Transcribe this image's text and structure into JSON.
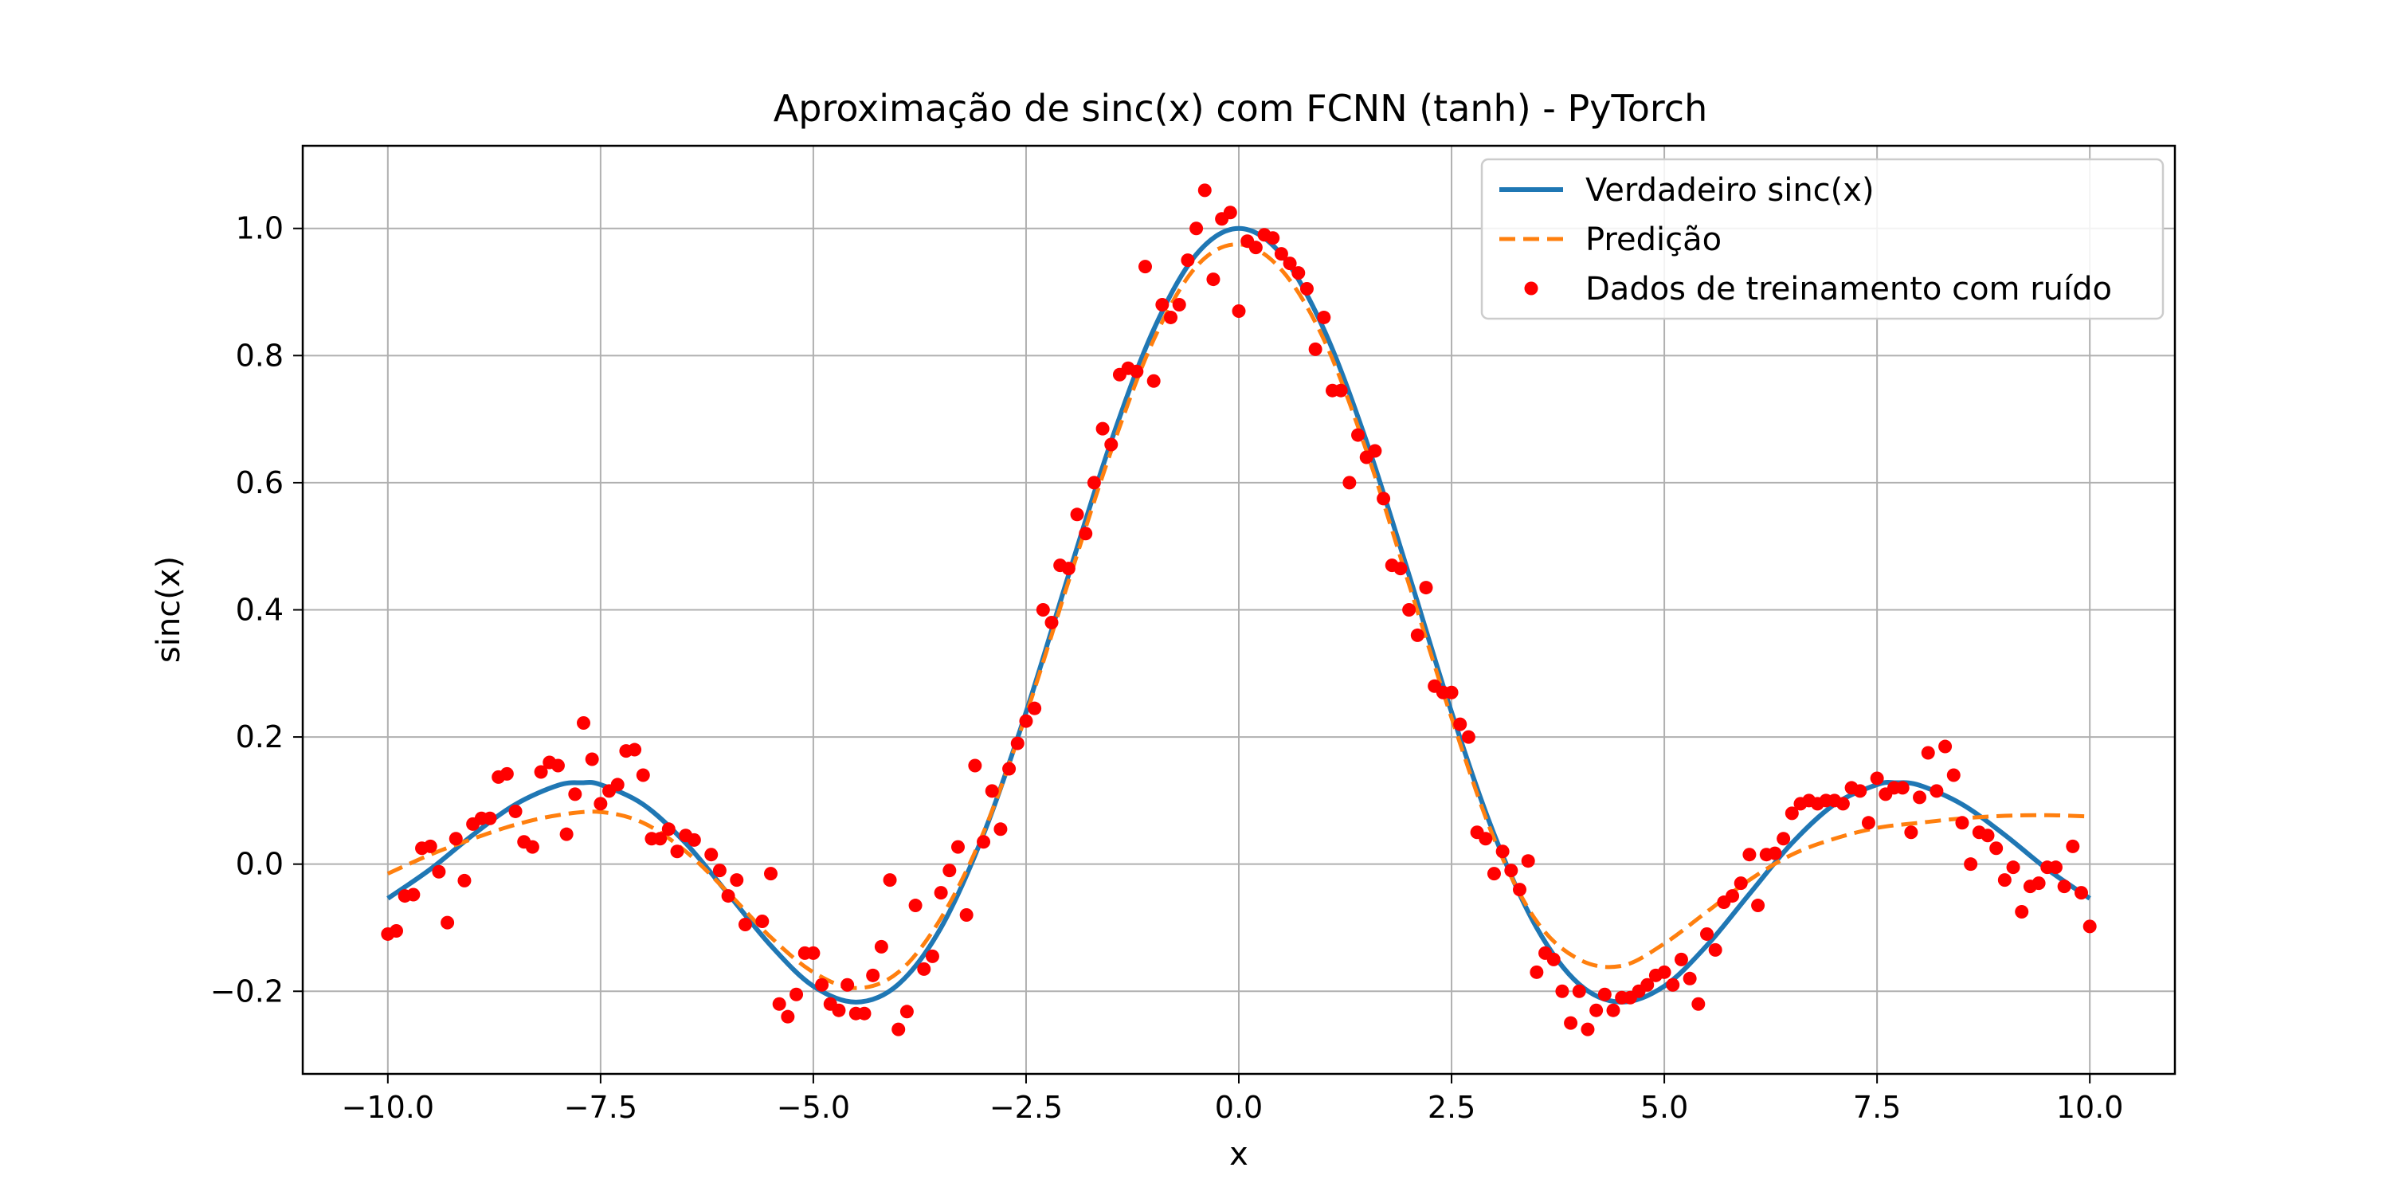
{
  "chart_data": {
    "type": "line",
    "title": "Aproximação de sinc(x) com FCNN (tanh) - PyTorch",
    "xlabel": "x",
    "ylabel": "sinc(x)",
    "xlim": [
      -11,
      11
    ],
    "ylim": [
      -0.33,
      1.13
    ],
    "x_ticks": [
      -10,
      -7.5,
      -5,
      -2.5,
      0,
      2.5,
      5,
      7.5,
      10
    ],
    "x_tick_labels": [
      "−10.0",
      "−7.5",
      "−5.0",
      "−2.5",
      "0.0",
      "2.5",
      "5.0",
      "7.5",
      "10.0"
    ],
    "y_ticks": [
      -0.2,
      0,
      0.2,
      0.4,
      0.6,
      0.8,
      1.0
    ],
    "y_tick_labels": [
      "−0.2",
      "0.0",
      "0.2",
      "0.4",
      "0.6",
      "0.8",
      "1.0"
    ],
    "grid": true,
    "legend_position": "top-right",
    "colors": {
      "true": "#1f77b4",
      "pred": "#ff7f0e",
      "points": "#ff0000"
    },
    "series": [
      {
        "name": "Verdadeiro sinc(x)",
        "style": "solid",
        "x": [
          -10,
          -9.5,
          -9,
          -8.5,
          -8,
          -7.725,
          -7.5,
          -7,
          -6.5,
          -6,
          -5.5,
          -5,
          -4.493,
          -4,
          -3.5,
          -3,
          -2.5,
          -2,
          -1.5,
          -1,
          -0.5,
          0,
          0.5,
          1,
          1.5,
          2,
          2.5,
          3,
          3.5,
          4,
          4.493,
          5,
          5.5,
          6,
          6.5,
          7,
          7.5,
          7.725,
          8,
          8.5,
          9,
          9.5,
          10
        ],
        "y": [
          -0.054,
          -0.008,
          0.046,
          0.094,
          0.124,
          0.128,
          0.125,
          0.094,
          0.033,
          -0.047,
          -0.128,
          -0.192,
          -0.217,
          -0.189,
          -0.1,
          0.047,
          0.239,
          0.455,
          0.665,
          0.841,
          0.959,
          1.0,
          0.959,
          0.841,
          0.665,
          0.455,
          0.239,
          0.047,
          -0.1,
          -0.189,
          -0.217,
          -0.192,
          -0.128,
          -0.047,
          0.033,
          0.094,
          0.125,
          0.128,
          0.124,
          0.094,
          0.046,
          -0.008,
          -0.054
        ]
      },
      {
        "name": "Predição",
        "style": "dashed",
        "x": [
          -10,
          -9.5,
          -9,
          -8.5,
          -8,
          -7.5,
          -7,
          -6.5,
          -6,
          -5.5,
          -5,
          -4.5,
          -4,
          -3.5,
          -3,
          -2.5,
          -2,
          -1.5,
          -1,
          -0.5,
          0,
          0.5,
          1,
          1.5,
          2,
          2.5,
          3,
          3.5,
          4,
          4.5,
          5,
          5.5,
          6,
          6.5,
          7,
          7.5,
          8,
          8.5,
          9,
          9.5,
          10
        ],
        "y": [
          -0.015,
          0.015,
          0.04,
          0.062,
          0.077,
          0.082,
          0.065,
          0.02,
          -0.045,
          -0.115,
          -0.17,
          -0.195,
          -0.17,
          -0.085,
          0.05,
          0.235,
          0.445,
          0.65,
          0.825,
          0.94,
          0.975,
          0.935,
          0.825,
          0.65,
          0.44,
          0.23,
          0.04,
          -0.09,
          -0.15,
          -0.16,
          -0.125,
          -0.075,
          -0.025,
          0.015,
          0.04,
          0.057,
          0.065,
          0.072,
          0.076,
          0.077,
          0.075
        ]
      },
      {
        "name": "Dados de treinamento com ruído",
        "style": "scatter",
        "points": [
          [
            -10.0,
            -0.11
          ],
          [
            -9.9,
            -0.105
          ],
          [
            -9.8,
            -0.05
          ],
          [
            -9.7,
            -0.048
          ],
          [
            -9.6,
            0.025
          ],
          [
            -9.5,
            0.028
          ],
          [
            -9.4,
            -0.012
          ],
          [
            -9.3,
            -0.092
          ],
          [
            -9.2,
            0.04
          ],
          [
            -9.1,
            -0.026
          ],
          [
            -9.0,
            0.063
          ],
          [
            -8.9,
            0.072
          ],
          [
            -8.8,
            0.072
          ],
          [
            -8.7,
            0.137
          ],
          [
            -8.6,
            0.142
          ],
          [
            -8.5,
            0.083
          ],
          [
            -8.4,
            0.035
          ],
          [
            -8.3,
            0.027
          ],
          [
            -8.2,
            0.145
          ],
          [
            -8.1,
            0.16
          ],
          [
            -8.0,
            0.155
          ],
          [
            -7.9,
            0.047
          ],
          [
            -7.8,
            0.11
          ],
          [
            -7.7,
            0.222
          ],
          [
            -7.6,
            0.165
          ],
          [
            -7.5,
            0.095
          ],
          [
            -7.4,
            0.115
          ],
          [
            -7.3,
            0.125
          ],
          [
            -7.2,
            0.178
          ],
          [
            -7.1,
            0.18
          ],
          [
            -7.0,
            0.14
          ],
          [
            -6.9,
            0.04
          ],
          [
            -6.8,
            0.04
          ],
          [
            -6.7,
            0.055
          ],
          [
            -6.6,
            0.02
          ],
          [
            -6.5,
            0.045
          ],
          [
            -6.4,
            0.038
          ],
          [
            -6.2,
            0.015
          ],
          [
            -6.1,
            -0.01
          ],
          [
            -6.0,
            -0.05
          ],
          [
            -5.9,
            -0.025
          ],
          [
            -5.8,
            -0.095
          ],
          [
            -5.6,
            -0.09
          ],
          [
            -5.5,
            -0.015
          ],
          [
            -5.4,
            -0.22
          ],
          [
            -5.3,
            -0.24
          ],
          [
            -5.2,
            -0.205
          ],
          [
            -5.1,
            -0.14
          ],
          [
            -5.0,
            -0.14
          ],
          [
            -4.9,
            -0.19
          ],
          [
            -4.8,
            -0.22
          ],
          [
            -4.7,
            -0.23
          ],
          [
            -4.6,
            -0.19
          ],
          [
            -4.5,
            -0.235
          ],
          [
            -4.4,
            -0.235
          ],
          [
            -4.3,
            -0.175
          ],
          [
            -4.2,
            -0.13
          ],
          [
            -4.1,
            -0.025
          ],
          [
            -4.0,
            -0.26
          ],
          [
            -3.9,
            -0.232
          ],
          [
            -3.8,
            -0.065
          ],
          [
            -3.7,
            -0.165
          ],
          [
            -3.6,
            -0.145
          ],
          [
            -3.5,
            -0.045
          ],
          [
            -3.4,
            -0.01
          ],
          [
            -3.3,
            0.027
          ],
          [
            -3.2,
            -0.08
          ],
          [
            -3.1,
            0.155
          ],
          [
            -3.0,
            0.035
          ],
          [
            -2.9,
            0.115
          ],
          [
            -2.8,
            0.055
          ],
          [
            -2.7,
            0.15
          ],
          [
            -2.6,
            0.19
          ],
          [
            -2.5,
            0.225
          ],
          [
            -2.4,
            0.245
          ],
          [
            -2.3,
            0.4
          ],
          [
            -2.2,
            0.38
          ],
          [
            -2.1,
            0.47
          ],
          [
            -2.0,
            0.465
          ],
          [
            -1.9,
            0.55
          ],
          [
            -1.8,
            0.52
          ],
          [
            -1.7,
            0.6
          ],
          [
            -1.6,
            0.685
          ],
          [
            -1.5,
            0.66
          ],
          [
            -1.4,
            0.77
          ],
          [
            -1.3,
            0.78
          ],
          [
            -1.2,
            0.775
          ],
          [
            -1.1,
            0.94
          ],
          [
            -1.0,
            0.76
          ],
          [
            -0.9,
            0.88
          ],
          [
            -0.8,
            0.86
          ],
          [
            -0.7,
            0.88
          ],
          [
            -0.6,
            0.95
          ],
          [
            -0.5,
            1.0
          ],
          [
            -0.4,
            1.06
          ],
          [
            -0.3,
            0.92
          ],
          [
            -0.2,
            1.015
          ],
          [
            -0.1,
            1.025
          ],
          [
            0.0,
            0.87
          ],
          [
            0.1,
            0.98
          ],
          [
            0.2,
            0.97
          ],
          [
            0.3,
            0.99
          ],
          [
            0.4,
            0.985
          ],
          [
            0.5,
            0.96
          ],
          [
            0.6,
            0.945
          ],
          [
            0.7,
            0.93
          ],
          [
            0.8,
            0.905
          ],
          [
            0.9,
            0.81
          ],
          [
            1.0,
            0.86
          ],
          [
            1.1,
            0.745
          ],
          [
            1.2,
            0.745
          ],
          [
            1.3,
            0.6
          ],
          [
            1.4,
            0.675
          ],
          [
            1.5,
            0.64
          ],
          [
            1.6,
            0.65
          ],
          [
            1.7,
            0.575
          ],
          [
            1.8,
            0.47
          ],
          [
            1.9,
            0.465
          ],
          [
            2.0,
            0.4
          ],
          [
            2.1,
            0.36
          ],
          [
            2.2,
            0.435
          ],
          [
            2.3,
            0.28
          ],
          [
            2.4,
            0.27
          ],
          [
            2.5,
            0.27
          ],
          [
            2.6,
            0.22
          ],
          [
            2.7,
            0.2
          ],
          [
            2.8,
            0.05
          ],
          [
            2.9,
            0.04
          ],
          [
            3.0,
            -0.015
          ],
          [
            3.1,
            0.02
          ],
          [
            3.2,
            -0.01
          ],
          [
            3.3,
            -0.04
          ],
          [
            3.4,
            0.005
          ],
          [
            3.5,
            -0.17
          ],
          [
            3.6,
            -0.14
          ],
          [
            3.7,
            -0.15
          ],
          [
            3.8,
            -0.2
          ],
          [
            3.9,
            -0.25
          ],
          [
            4.0,
            -0.2
          ],
          [
            4.1,
            -0.26
          ],
          [
            4.2,
            -0.23
          ],
          [
            4.3,
            -0.205
          ],
          [
            4.4,
            -0.23
          ],
          [
            4.5,
            -0.21
          ],
          [
            4.6,
            -0.21
          ],
          [
            4.7,
            -0.2
          ],
          [
            4.8,
            -0.19
          ],
          [
            4.9,
            -0.175
          ],
          [
            5.0,
            -0.17
          ],
          [
            5.1,
            -0.19
          ],
          [
            5.2,
            -0.15
          ],
          [
            5.3,
            -0.18
          ],
          [
            5.4,
            -0.22
          ],
          [
            5.5,
            -0.11
          ],
          [
            5.6,
            -0.135
          ],
          [
            5.7,
            -0.06
          ],
          [
            5.8,
            -0.05
          ],
          [
            5.9,
            -0.03
          ],
          [
            6.0,
            0.015
          ],
          [
            6.1,
            -0.065
          ],
          [
            6.2,
            0.015
          ],
          [
            6.3,
            0.017
          ],
          [
            6.4,
            0.04
          ],
          [
            6.5,
            0.08
          ],
          [
            6.6,
            0.095
          ],
          [
            6.7,
            0.1
          ],
          [
            6.8,
            0.095
          ],
          [
            6.9,
            0.1
          ],
          [
            7.0,
            0.1
          ],
          [
            7.1,
            0.095
          ],
          [
            7.2,
            0.12
          ],
          [
            7.3,
            0.115
          ],
          [
            7.4,
            0.065
          ],
          [
            7.5,
            0.135
          ],
          [
            7.6,
            0.11
          ],
          [
            7.7,
            0.12
          ],
          [
            7.8,
            0.12
          ],
          [
            7.9,
            0.05
          ],
          [
            8.0,
            0.105
          ],
          [
            8.1,
            0.175
          ],
          [
            8.2,
            0.115
          ],
          [
            8.3,
            0.185
          ],
          [
            8.4,
            0.14
          ],
          [
            8.5,
            0.065
          ],
          [
            8.6,
            0.0
          ],
          [
            8.7,
            0.05
          ],
          [
            8.8,
            0.045
          ],
          [
            8.9,
            0.025
          ],
          [
            9.0,
            -0.025
          ],
          [
            9.1,
            -0.005
          ],
          [
            9.2,
            -0.075
          ],
          [
            9.3,
            -0.035
          ],
          [
            9.4,
            -0.03
          ],
          [
            9.5,
            -0.005
          ],
          [
            9.6,
            -0.005
          ],
          [
            9.7,
            -0.035
          ],
          [
            9.8,
            0.028
          ],
          [
            9.9,
            -0.045
          ],
          [
            10.0,
            -0.098
          ]
        ]
      }
    ]
  }
}
